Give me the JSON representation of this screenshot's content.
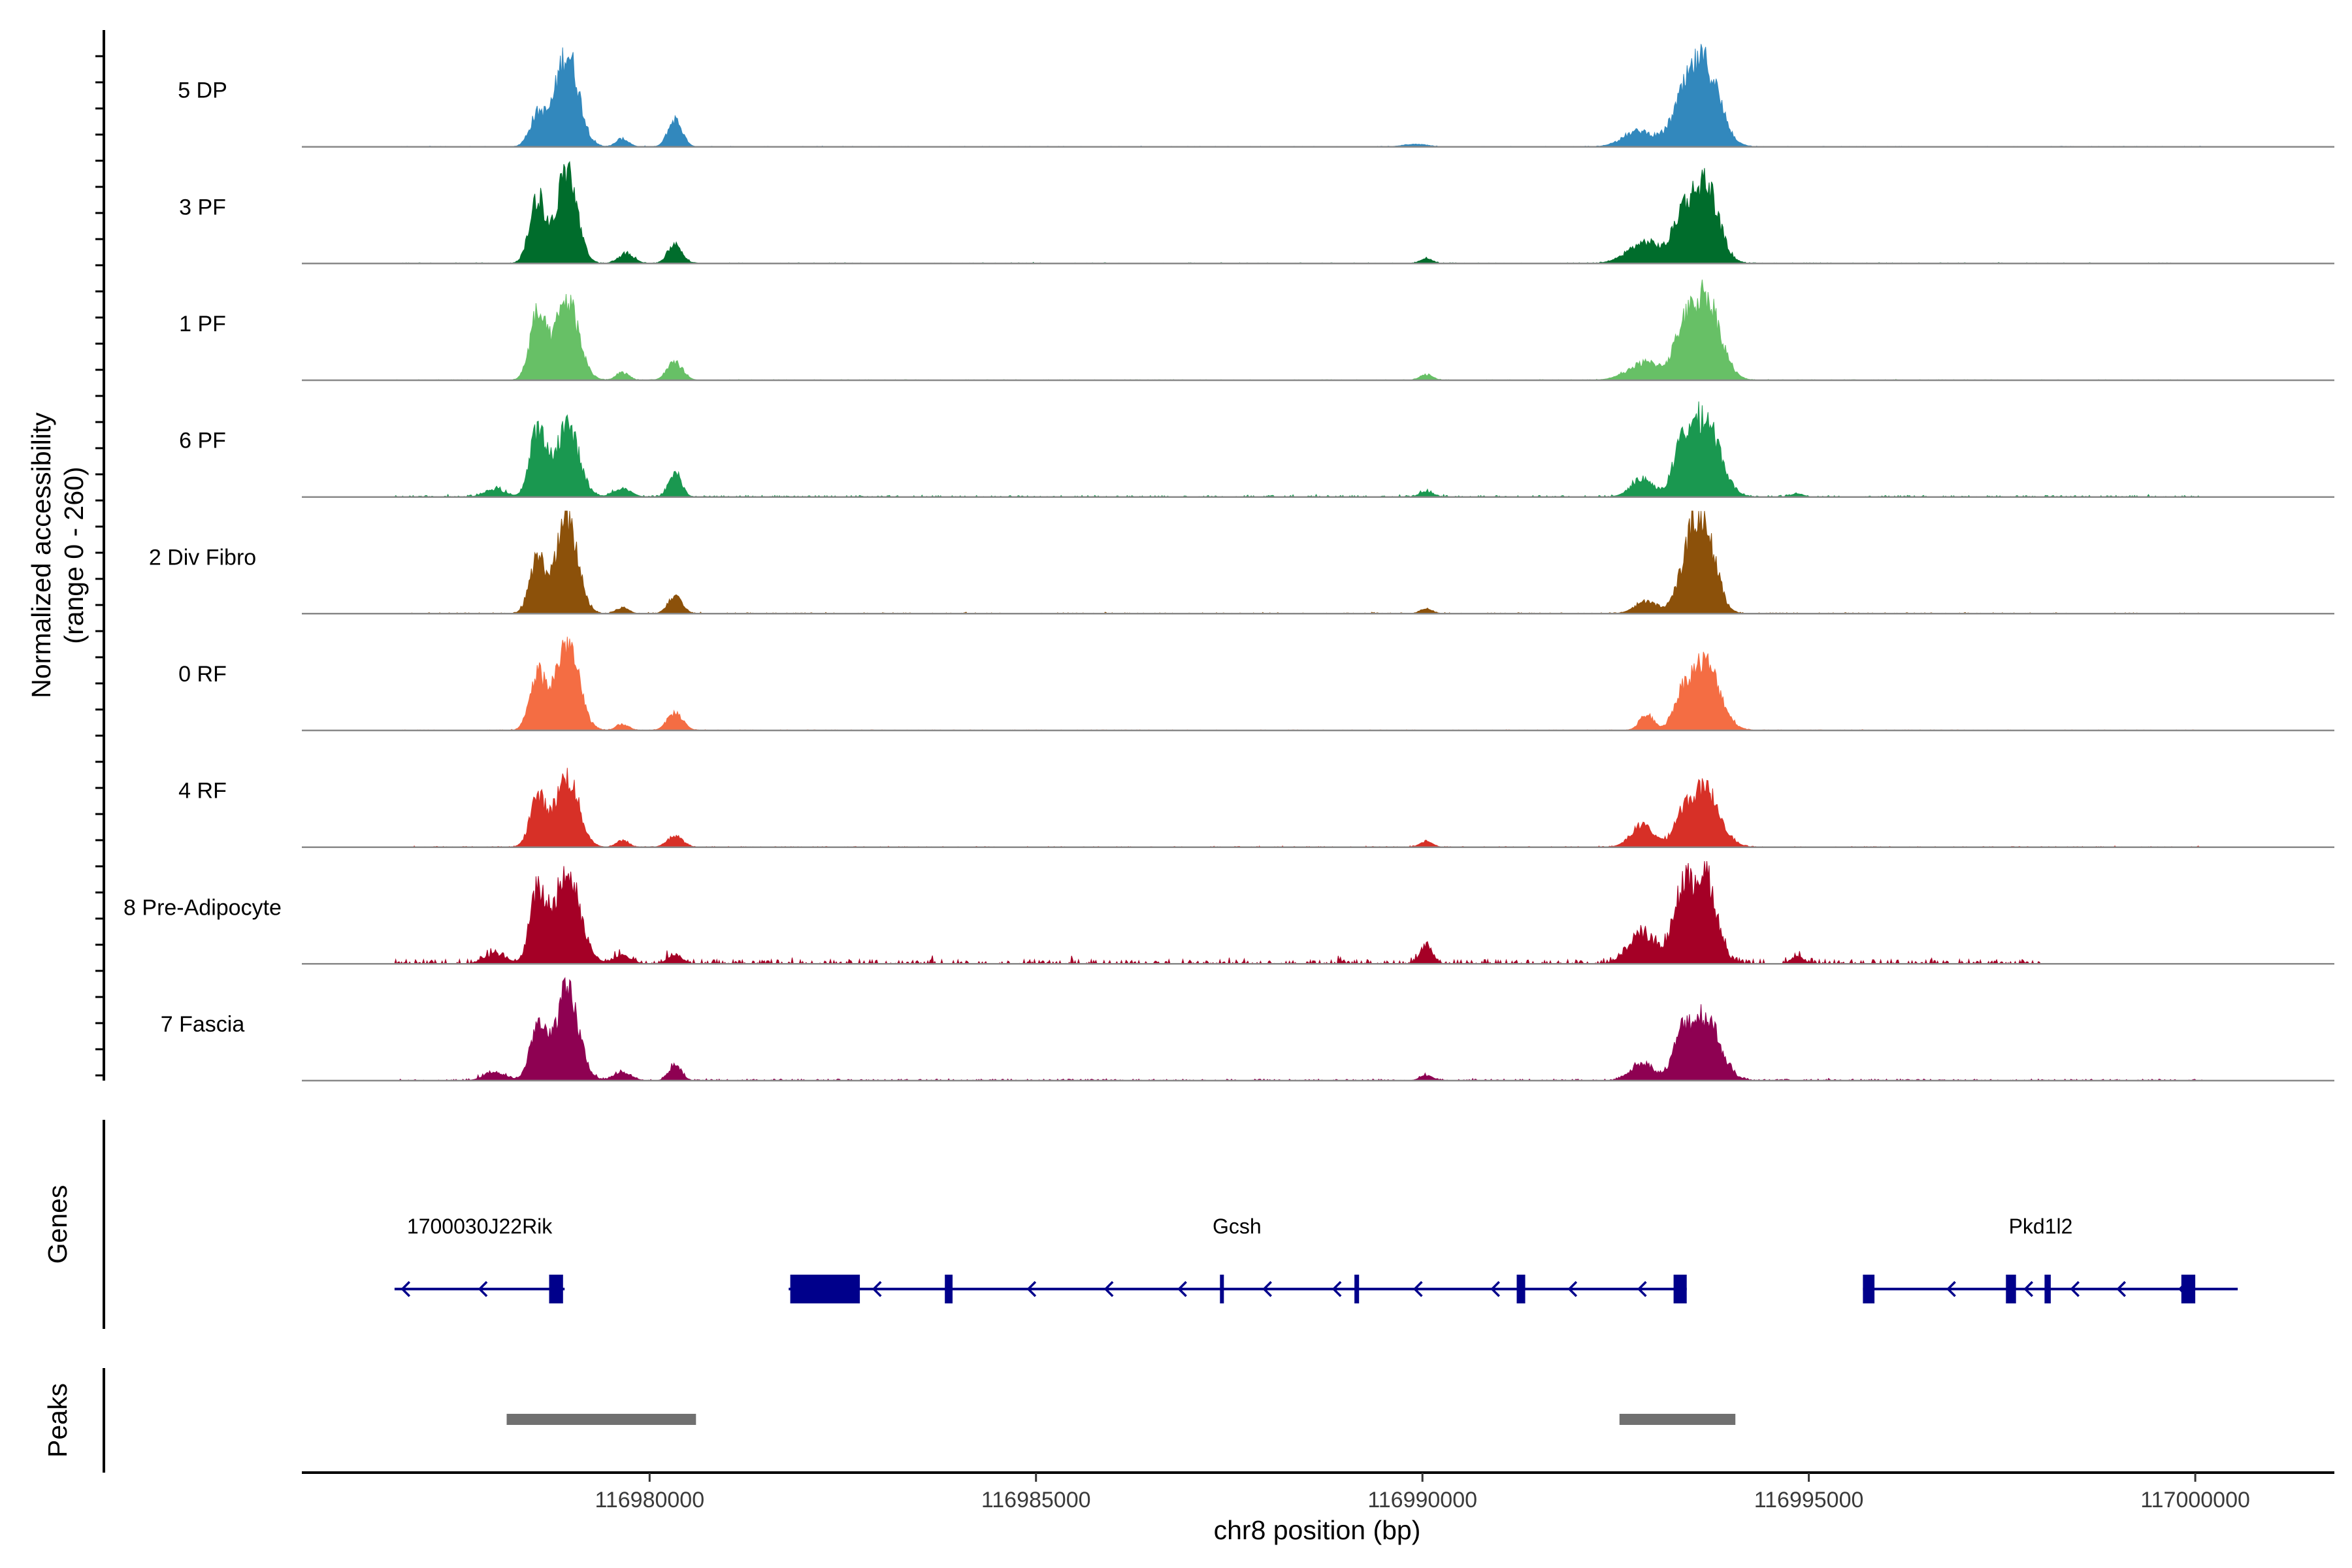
{
  "chart_data": {
    "type": "area",
    "title": "",
    "ylabel_line1": "Normalized accessibility",
    "ylabel_line2": "(range 0 - 260)",
    "ylim": [
      0,
      260
    ],
    "xlabel": "chr8 position (bp)",
    "xlim": [
      116975500,
      117001800
    ],
    "xticks": [
      {
        "value": 116980000,
        "label": "116980000"
      },
      {
        "value": 116985000,
        "label": "116985000"
      },
      {
        "value": 116990000,
        "label": "116990000"
      },
      {
        "value": 116995000,
        "label": "116995000"
      },
      {
        "value": 117000000,
        "label": "117000000"
      }
    ],
    "baseline_color": "#888888",
    "tracks": [
      {
        "name": "5 DP",
        "color": "#3288bd",
        "noise": 0.6,
        "noise_end": 117000100,
        "peaks": [
          [
            116978550,
            80,
            100
          ],
          [
            116978930,
            240,
            150
          ],
          [
            116979650,
            20,
            80
          ],
          [
            116980330,
            70,
            90
          ],
          [
            116989900,
            6,
            150
          ],
          [
            116992800,
            40,
            200
          ],
          [
            116993350,
            80,
            150
          ],
          [
            116993650,
            210,
            190
          ]
        ]
      },
      {
        "name": "3 PF",
        "color": "#006d2c",
        "noise": 0.8,
        "noise_end": 117000100,
        "peaks": [
          [
            116978550,
            170,
            100
          ],
          [
            116978930,
            240,
            130
          ],
          [
            116979700,
            25,
            100
          ],
          [
            116980330,
            50,
            90
          ],
          [
            116990050,
            12,
            80
          ],
          [
            116992900,
            55,
            230
          ],
          [
            116993350,
            95,
            110
          ],
          [
            116993650,
            210,
            170
          ]
        ]
      },
      {
        "name": "1 PF",
        "color": "#67c066",
        "noise": 0.6,
        "noise_end": 117000100,
        "peaks": [
          [
            116978550,
            165,
            100
          ],
          [
            116978930,
            205,
            150
          ],
          [
            116979650,
            20,
            80
          ],
          [
            116980330,
            45,
            100
          ],
          [
            116990050,
            15,
            80
          ],
          [
            116992900,
            45,
            230
          ],
          [
            116993350,
            75,
            110
          ],
          [
            116993650,
            220,
            190
          ]
        ]
      },
      {
        "name": "6 PF",
        "color": "#1a9850",
        "noise": 1.6,
        "noise_end": 117000100,
        "peaks": [
          [
            116978000,
            20,
            130
          ],
          [
            116978550,
            165,
            100
          ],
          [
            116978930,
            185,
            150
          ],
          [
            116979650,
            22,
            110
          ],
          [
            116980330,
            62,
            80
          ],
          [
            116990050,
            14,
            80
          ],
          [
            116992850,
            45,
            150
          ],
          [
            116993350,
            95,
            110
          ],
          [
            116993650,
            205,
            190
          ],
          [
            116994850,
            8,
            80
          ]
        ]
      },
      {
        "name": "2 Div Fibro",
        "color": "#8c510a",
        "noise": 1.0,
        "noise_end": 117000100,
        "peaks": [
          [
            116978550,
            140,
            100
          ],
          [
            116978930,
            240,
            140
          ],
          [
            116979650,
            16,
            80
          ],
          [
            116980330,
            48,
            90
          ],
          [
            116990050,
            12,
            80
          ],
          [
            116992900,
            30,
            150
          ],
          [
            116993450,
            120,
            140
          ],
          [
            116993650,
            200,
            150
          ]
        ]
      },
      {
        "name": "0 RF",
        "color": "#f46d43",
        "noise": 0.6,
        "noise_end": 117000100,
        "peaks": [
          [
            116978550,
            140,
            100
          ],
          [
            116978930,
            225,
            150
          ],
          [
            116979650,
            16,
            80
          ],
          [
            116980330,
            45,
            100
          ],
          [
            116992900,
            40,
            90
          ],
          [
            116993350,
            60,
            110
          ],
          [
            116993650,
            175,
            190
          ]
        ]
      },
      {
        "name": "4 RF",
        "color": "#d73027",
        "noise": 0.8,
        "noise_end": 117000100,
        "peaks": [
          [
            116978550,
            125,
            100
          ],
          [
            116978930,
            180,
            150
          ],
          [
            116979650,
            16,
            80
          ],
          [
            116980330,
            28,
            100
          ],
          [
            116990050,
            15,
            80
          ],
          [
            116992850,
            55,
            150
          ],
          [
            116993350,
            55,
            110
          ],
          [
            116993650,
            150,
            190
          ]
        ]
      },
      {
        "name": "8 Pre-Adipocyte",
        "color": "#a50026",
        "noise": 4.5,
        "noise_end": 116998000,
        "peaks": [
          [
            116978000,
            25,
            140
          ],
          [
            116978550,
            170,
            100
          ],
          [
            116978930,
            230,
            170
          ],
          [
            116979650,
            22,
            110
          ],
          [
            116980330,
            25,
            90
          ],
          [
            116990050,
            48,
            80
          ],
          [
            116992850,
            75,
            180
          ],
          [
            116993350,
            160,
            120
          ],
          [
            116993650,
            230,
            150
          ],
          [
            116994850,
            18,
            80
          ]
        ]
      },
      {
        "name": "7 Fascia",
        "color": "#8e0152",
        "noise": 1.6,
        "noise_end": 117000100,
        "peaks": [
          [
            116978000,
            20,
            140
          ],
          [
            116978550,
            135,
            100
          ],
          [
            116978930,
            225,
            150
          ],
          [
            116979650,
            22,
            110
          ],
          [
            116980330,
            40,
            80
          ],
          [
            116990050,
            14,
            80
          ],
          [
            116992850,
            45,
            150
          ],
          [
            116993350,
            90,
            110
          ],
          [
            116993650,
            165,
            190
          ]
        ]
      }
    ],
    "genes_panel_label": "Genes",
    "peaks_panel_label": "Peaks",
    "gene_color": "#00008b",
    "genes": [
      {
        "name": "1700030J22Rik",
        "label_position": 116977800,
        "start": 116976700,
        "end": 116978900,
        "strand": "-",
        "exons": [
          [
            116978700,
            116978880
          ]
        ],
        "arrows": [
          116976800,
          116977800
        ]
      },
      {
        "name": "Gcsh",
        "label_position": 116987600,
        "start": 116981800,
        "end": 116993420,
        "strand": "-",
        "exons": [
          [
            116981820,
            116982720
          ],
          [
            116983820,
            116983920
          ],
          [
            116987380,
            116987420
          ],
          [
            116989120,
            116989180
          ],
          [
            116991220,
            116991330
          ],
          [
            116993250,
            116993420
          ]
        ],
        "arrows": [
          116982900,
          116984900,
          116985900,
          116986850,
          116987950,
          116988850,
          116989900,
          116990900,
          116991900,
          116992800
        ]
      },
      {
        "name": "Pkd1l2",
        "label_position": 116998000,
        "start": 116995700,
        "end": 117000550,
        "strand": "-",
        "exons": [
          [
            116995700,
            116995850
          ],
          [
            116997550,
            116997680
          ],
          [
            116998050,
            116998130
          ],
          [
            116999820,
            117000000
          ]
        ],
        "arrows": [
          116996800,
          116997800,
          116998400,
          116999000,
          116999800
        ]
      }
    ],
    "peak_color": "#707070",
    "peak_regions": [
      [
        116978150,
        116980600
      ],
      [
        116992550,
        116994050
      ]
    ]
  }
}
